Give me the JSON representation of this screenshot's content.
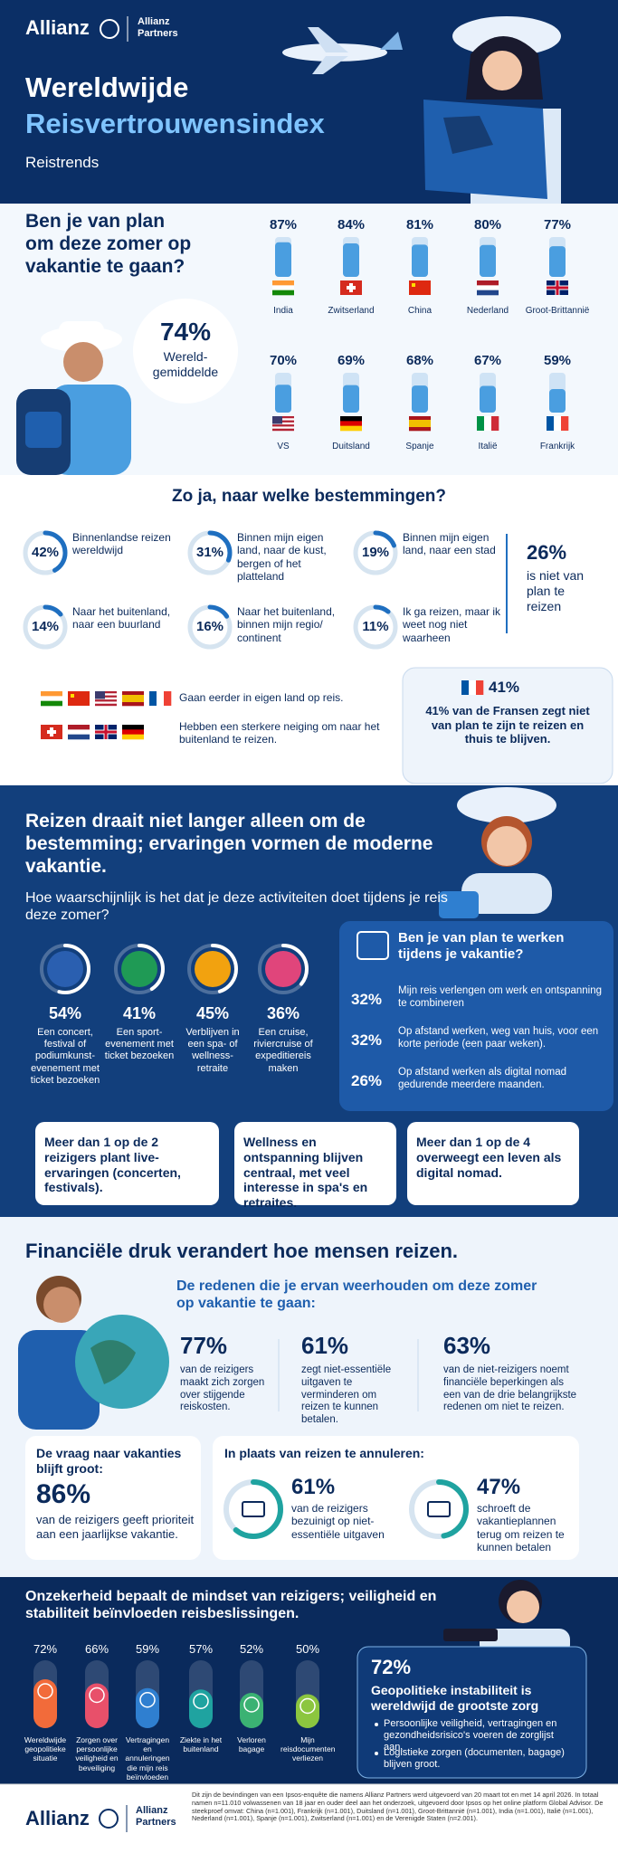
{
  "header": {
    "logo": "Allianz",
    "partner": "Allianz Partners",
    "title_line1": "Wereldwijde",
    "title_line2": "Reisvertrouwensindex",
    "subtitle": "Reistrends"
  },
  "section1": {
    "question": "Ben je van plan om deze zomer op vakantie te gaan?",
    "average": {
      "label": "74%",
      "text": "Wereld-gemiddelde"
    },
    "countries": [
      {
        "name": "India",
        "value": 87,
        "label": "87%"
      },
      {
        "name": "Zwitserland",
        "value": 84,
        "label": "84%"
      },
      {
        "name": "China",
        "value": 81,
        "label": "81%"
      },
      {
        "name": "Nederland",
        "value": 80,
        "label": "80%"
      },
      {
        "name": "Groot-Brittannië",
        "value": 77,
        "label": "77%"
      },
      {
        "name": "VS",
        "value": 70,
        "label": "70%"
      },
      {
        "name": "Duitsland",
        "value": 69,
        "label": "69%"
      },
      {
        "name": "Spanje",
        "value": 68,
        "label": "68%"
      },
      {
        "name": "Italië",
        "value": 67,
        "label": "67%"
      },
      {
        "name": "Frankrijk",
        "value": 59,
        "label": "59%"
      }
    ]
  },
  "section2": {
    "title": "Zo ja, naar welke bestemmingen?",
    "destinations": [
      {
        "value": 42,
        "label": "42%",
        "text": "Binnenlandse reizen wereldwijd"
      },
      {
        "value": 31,
        "label": "31%",
        "text": "Binnen mijn eigen land, naar de kust, bergen of het platteland"
      },
      {
        "value": 19,
        "label": "19%",
        "text": "Binnen mijn eigen land, naar een stad"
      },
      {
        "value": 14,
        "label": "14%",
        "text": "Naar het buitenland, naar een buurland"
      },
      {
        "value": 16,
        "label": "16%",
        "text": "Naar het buitenland, binnen mijn regio/ continent"
      },
      {
        "value": 11,
        "label": "11%",
        "text": "Ik ga reizen, maar ik weet nog niet waarheen"
      }
    ],
    "not_planning": {
      "label": "26%",
      "text": "is niet van plan te reizen"
    },
    "domestic_note": "Gaan eerder in eigen land op reis.",
    "abroad_note": "Hebben een sterkere neiging om naar het buitenland te reizen.",
    "france": {
      "label": "41%",
      "text": "41% van de Fransen zegt niet van plan te zijn te reizen en thuis te blijven."
    }
  },
  "section3": {
    "title": "Reizen draait niet langer alleen om de bestemming; ervaringen vormen de moderne vakantie.",
    "question": "Hoe waarschijnlijk is het dat je deze activiteiten doet tijdens je reis deze zomer?",
    "activities": [
      {
        "value": 54,
        "label": "54%",
        "text": "Een concert, festival of podiumkunst-evenement met ticket bezoeken"
      },
      {
        "value": 41,
        "label": "41%",
        "text": "Een sport-evenement met ticket bezoeken"
      },
      {
        "value": 45,
        "label": "45%",
        "text": "Verblijven in een spa- of wellness-retraite"
      },
      {
        "value": 36,
        "label": "36%",
        "text": "Een cruise, riviercruise of expeditiereis maken"
      }
    ],
    "work": {
      "title": "Ben je van plan te werken tijdens je vakantie?",
      "items": [
        {
          "label": "32%",
          "text": "Mijn reis verlengen om werk en ontspanning te combineren"
        },
        {
          "label": "32%",
          "text": "Op afstand werken, weg van huis, voor een korte periode (een paar weken)."
        },
        {
          "label": "26%",
          "text": "Op afstand werken als digital nomad gedurende meerdere maanden."
        }
      ]
    },
    "callouts": [
      "Meer dan 1 op de 2 reizigers plant live-ervaringen (concerten, festivals).",
      "Wellness en ontspanning blijven centraal, met veel interesse in spa's en retraites.",
      "Meer dan 1 op de 4 overweegt een leven als digital nomad."
    ]
  },
  "section4": {
    "title": "Financiële druk verandert hoe mensen reizen.",
    "subtitle": "De redenen die je ervan weerhouden om deze zomer op vakantie te gaan:",
    "stats": [
      {
        "label": "77%",
        "text": "van de reizigers maakt zich zorgen over stijgende reiskosten."
      },
      {
        "label": "61%",
        "text": "zegt niet-essentiële uitgaven te verminderen om reizen te kunnen betalen."
      },
      {
        "label": "63%",
        "text": "van de niet-reizigers noemt financiële beperkingen als een van de drie belangrijkste redenen om niet te reizen."
      }
    ],
    "demand": {
      "title": "De vraag naar vakanties blijft groot:",
      "label": "86%",
      "text": "van de reizigers geeft prioriteit aan een jaarlijkse vakantie."
    },
    "instead": {
      "title": "In plaats van reizen te annuleren:",
      "items": [
        {
          "value": 61,
          "label": "61%",
          "text": "van de reizigers bezuinigt op niet-essentiële uitgaven"
        },
        {
          "value": 47,
          "label": "47%",
          "text": "schroeft de vakantieplannen terug om reizen te kunnen betalen"
        }
      ]
    }
  },
  "section5": {
    "title": "Onzekerheid bepaalt de mindset van reizigers; veiligheid en stabiliteit beïnvloeden reisbeslissingen.",
    "concerns": [
      {
        "value": 72,
        "label": "72%",
        "text": "Wereldwijde geopolitieke situatie",
        "color": "#f26b3a"
      },
      {
        "value": 66,
        "label": "66%",
        "text": "Zorgen over persoonlijke veiligheid en beveiliging",
        "color": "#e8506a"
      },
      {
        "value": 59,
        "label": "59%",
        "text": "Vertragingen en annuleringen die mijn reis beïnvloeden",
        "color": "#2f7fd0"
      },
      {
        "value": 57,
        "label": "57%",
        "text": "Ziekte in het buitenland",
        "color": "#1fa3a0"
      },
      {
        "value": 52,
        "label": "52%",
        "text": "Verloren bagage",
        "color": "#3bb273"
      },
      {
        "value": 50,
        "label": "50%",
        "text": "Mijn reisdocumenten verliezen",
        "color": "#8cc63f"
      }
    ],
    "box": {
      "label": "72%",
      "text": "Geopolitieke instabiliteit is wereldwijd de grootste zorg",
      "bullets": [
        "Persoonlijke veiligheid, vertragingen en gezondheidsrisico's voeren de zorglijst aan.",
        "Logistieke zorgen (documenten, bagage) blijven groot."
      ]
    }
  },
  "footer": {
    "logo": "Allianz",
    "partner": "Allianz Partners",
    "text": "Dit zijn de bevindingen van een Ipsos-enquête die namens Allianz Partners werd uitgevoerd van 20 maart tot en met 14 april 2026. In totaal namen n=11.010 volwassenen van 18 jaar en ouder deel aan het onderzoek, uitgevoerd door Ipsos op het online platform Global Advisor. De steekproef omvat: China (n=1.001), Frankrijk (n=1.001), Duitsland (n=1.001), Groot-Brittannië (n=1.001), India (n=1.001), Italië (n=1.001), Nederland (n=1.001), Spanje (n=1.001), Zwitserland (n=1.001) en de Verenigde Staten (n=2.001)."
  }
}
